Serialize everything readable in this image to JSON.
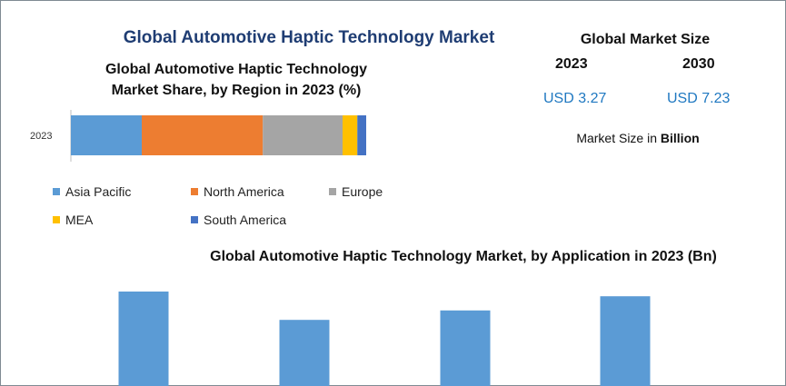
{
  "header": {
    "title": "Global Automotive Haptic Technology Market"
  },
  "market_size": {
    "title": "Global Market Size",
    "years": [
      "2023",
      "2030"
    ],
    "values": [
      "USD 3.27",
      "USD 7.23"
    ],
    "unit_prefix": "Market Size in ",
    "unit_bold": "Billion"
  },
  "region_chart": {
    "title_line1": "Global Automotive Haptic Technology",
    "title_line2": "Market Share, by Region in 2023 (%)"
  },
  "application_chart": {
    "title": "Global Automotive Haptic Technology Market, by Application in 2023 (Bn)"
  },
  "colors": {
    "asia_pacific": "#5b9bd5",
    "north_america": "#ed7d31",
    "europe": "#a5a5a5",
    "mea": "#ffc000",
    "south_america": "#4472c4",
    "application_bar": "#5b9bd5"
  },
  "chart_data": [
    {
      "type": "bar",
      "orientation": "horizontal-stacked",
      "title": "Global Automotive Haptic Technology Market Share, by Region in 2023 (%)",
      "categories": [
        "2023"
      ],
      "series": [
        {
          "name": "Asia Pacific",
          "values": [
            24
          ],
          "color": "#5b9bd5"
        },
        {
          "name": "North America",
          "values": [
            41
          ],
          "color": "#ed7d31"
        },
        {
          "name": "Europe",
          "values": [
            27
          ],
          "color": "#a5a5a5"
        },
        {
          "name": "MEA",
          "values": [
            5
          ],
          "color": "#ffc000"
        },
        {
          "name": "South America",
          "values": [
            3
          ],
          "color": "#4472c4"
        }
      ],
      "xlim": [
        0,
        100
      ],
      "legend_position": "bottom"
    },
    {
      "type": "bar",
      "title": "Global Automotive Haptic Technology Market, by Application in 2023 (Bn)",
      "categories": [
        "",
        "",
        "",
        ""
      ],
      "values": [
        1.0,
        0.7,
        0.8,
        0.95
      ],
      "ylim": [
        0,
        1.0
      ],
      "color": "#5b9bd5"
    }
  ]
}
